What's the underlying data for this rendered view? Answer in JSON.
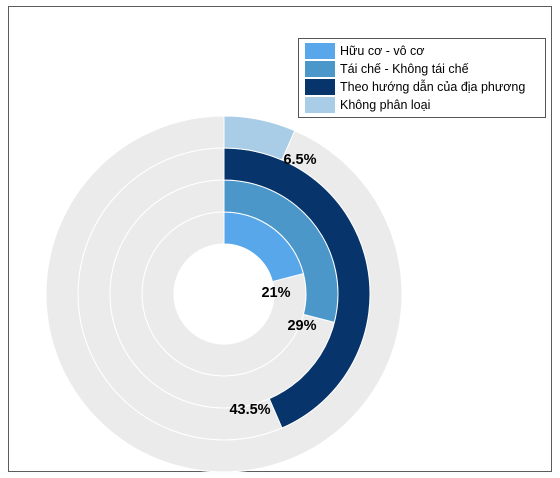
{
  "chart_data": {
    "type": "radial_bar",
    "series": [
      {
        "name": "Hữu cơ - vô cơ",
        "value": 21,
        "label": "21%",
        "color": "#58a7ea"
      },
      {
        "name": "Tái chế - Không tái chế",
        "value": 29,
        "label": "29%",
        "color": "#4b97ca"
      },
      {
        "name": "Theo hướng dẫn của địa phương",
        "value": 43.5,
        "label": "43.5%",
        "color": "#06346b"
      },
      {
        "name": "Không phân loại",
        "value": 6.5,
        "label": "6.5%",
        "color": "#a9cde6"
      }
    ],
    "scale_max": 100,
    "track_color": "#ebebeb",
    "legend_position": "top-right"
  }
}
